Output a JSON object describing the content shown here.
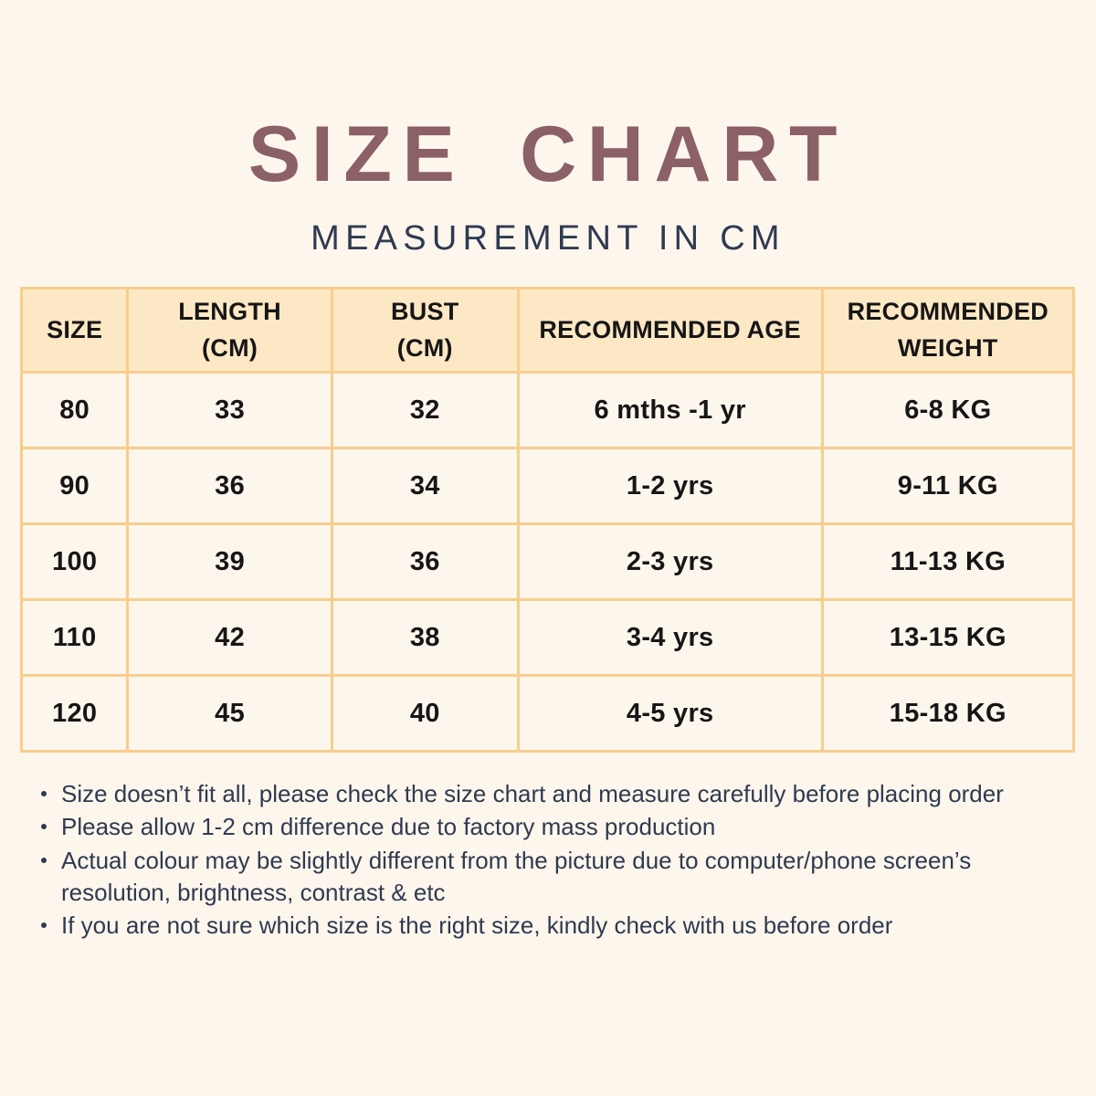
{
  "page": {
    "title": "SIZE CHART",
    "subtitle": "MEASUREMENT IN CM"
  },
  "table": {
    "columns": [
      {
        "label": "SIZE"
      },
      {
        "label": "LENGTH\n(CM)"
      },
      {
        "label": "BUST\n(CM)"
      },
      {
        "label": "RECOMMENDED AGE"
      },
      {
        "label": "RECOMMENDED\nWEIGHT"
      }
    ],
    "rows": [
      {
        "cells": [
          "80",
          "33",
          "32",
          "6 mths -1 yr",
          "6-8 KG"
        ]
      },
      {
        "cells": [
          "90",
          "36",
          "34",
          "1-2 yrs",
          "9-11 KG"
        ]
      },
      {
        "cells": [
          "100",
          "39",
          "36",
          "2-3 yrs",
          "11-13 KG"
        ]
      },
      {
        "cells": [
          "110",
          "42",
          "38",
          "3-4 yrs",
          "13-15 KG"
        ]
      },
      {
        "cells": [
          "120",
          "45",
          "40",
          "4-5 yrs",
          "15-18 KG"
        ]
      }
    ]
  },
  "notes": [
    "Size doesn’t fit all, please check the size chart and measure carefully before placing order",
    "Please allow 1-2 cm difference due to factory mass production",
    "Actual colour may be slightly different from the picture due to computer/phone screen’s resolution, brightness, contrast & etc",
    "If you are not sure which size is the right size, kindly check with us before order"
  ],
  "colors": {
    "background": "#fdf6ec",
    "title": "#8b6067",
    "subtitle": "#2f3a51",
    "table_border": "#f8cd8d",
    "header_fill": "#fde8c6",
    "cell_fill": "#fdf6ec",
    "table_text": "#161616",
    "notes_text": "#2f3a51"
  }
}
